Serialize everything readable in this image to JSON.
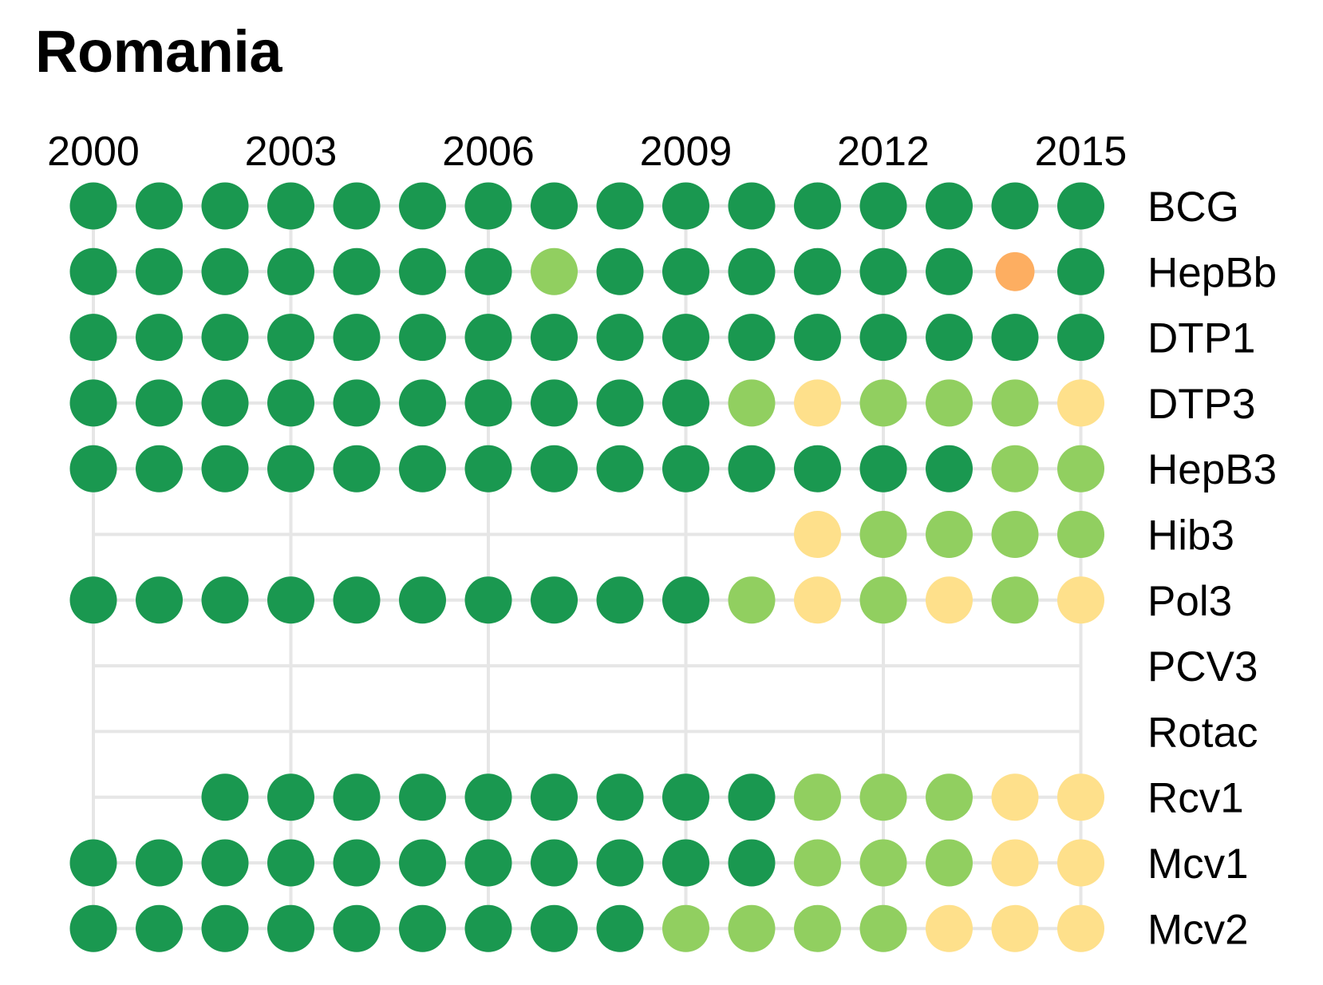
{
  "chart_data": {
    "type": "dot-matrix",
    "title": "Romania",
    "x": [
      2000,
      2001,
      2002,
      2003,
      2004,
      2005,
      2006,
      2007,
      2008,
      2009,
      2010,
      2011,
      2012,
      2013,
      2014,
      2015
    ],
    "x_tick_labels": [
      "2000",
      "2003",
      "2006",
      "2009",
      "2012",
      "2015"
    ],
    "grid": true,
    "colors": {
      "dark_green": "#1a9850",
      "light_green": "#91cf60",
      "light_yellow": "#fee08b",
      "orange": "#fdae61",
      "grid": "#e6e6e6"
    },
    "series": [
      {
        "name": "BCG",
        "values": [
          "dark_green",
          "dark_green",
          "dark_green",
          "dark_green",
          "dark_green",
          "dark_green",
          "dark_green",
          "dark_green",
          "dark_green",
          "dark_green",
          "dark_green",
          "dark_green",
          "dark_green",
          "dark_green",
          "dark_green",
          "dark_green"
        ]
      },
      {
        "name": "HepBb",
        "values": [
          "dark_green",
          "dark_green",
          "dark_green",
          "dark_green",
          "dark_green",
          "dark_green",
          "dark_green",
          "light_green",
          "dark_green",
          "dark_green",
          "dark_green",
          "dark_green",
          "dark_green",
          "dark_green",
          "orange",
          "dark_green"
        ]
      },
      {
        "name": "DTP1",
        "values": [
          "dark_green",
          "dark_green",
          "dark_green",
          "dark_green",
          "dark_green",
          "dark_green",
          "dark_green",
          "dark_green",
          "dark_green",
          "dark_green",
          "dark_green",
          "dark_green",
          "dark_green",
          "dark_green",
          "dark_green",
          "dark_green"
        ]
      },
      {
        "name": "DTP3",
        "values": [
          "dark_green",
          "dark_green",
          "dark_green",
          "dark_green",
          "dark_green",
          "dark_green",
          "dark_green",
          "dark_green",
          "dark_green",
          "dark_green",
          "light_green",
          "light_yellow",
          "light_green",
          "light_green",
          "light_green",
          "light_yellow"
        ]
      },
      {
        "name": "HepB3",
        "values": [
          "dark_green",
          "dark_green",
          "dark_green",
          "dark_green",
          "dark_green",
          "dark_green",
          "dark_green",
          "dark_green",
          "dark_green",
          "dark_green",
          "dark_green",
          "dark_green",
          "dark_green",
          "dark_green",
          "light_green",
          "light_green"
        ]
      },
      {
        "name": "Hib3",
        "values": [
          null,
          null,
          null,
          null,
          null,
          null,
          null,
          null,
          null,
          null,
          null,
          "light_yellow",
          "light_green",
          "light_green",
          "light_green",
          "light_green"
        ]
      },
      {
        "name": "Pol3",
        "values": [
          "dark_green",
          "dark_green",
          "dark_green",
          "dark_green",
          "dark_green",
          "dark_green",
          "dark_green",
          "dark_green",
          "dark_green",
          "dark_green",
          "light_green",
          "light_yellow",
          "light_green",
          "light_yellow",
          "light_green",
          "light_yellow"
        ]
      },
      {
        "name": "PCV3",
        "values": [
          null,
          null,
          null,
          null,
          null,
          null,
          null,
          null,
          null,
          null,
          null,
          null,
          null,
          null,
          null,
          null
        ]
      },
      {
        "name": "Rotac",
        "values": [
          null,
          null,
          null,
          null,
          null,
          null,
          null,
          null,
          null,
          null,
          null,
          null,
          null,
          null,
          null,
          null
        ]
      },
      {
        "name": "Rcv1",
        "values": [
          null,
          null,
          "dark_green",
          "dark_green",
          "dark_green",
          "dark_green",
          "dark_green",
          "dark_green",
          "dark_green",
          "dark_green",
          "dark_green",
          "light_green",
          "light_green",
          "light_green",
          "light_yellow",
          "light_yellow"
        ]
      },
      {
        "name": "Mcv1",
        "values": [
          "dark_green",
          "dark_green",
          "dark_green",
          "dark_green",
          "dark_green",
          "dark_green",
          "dark_green",
          "dark_green",
          "dark_green",
          "dark_green",
          "dark_green",
          "light_green",
          "light_green",
          "light_green",
          "light_yellow",
          "light_yellow"
        ]
      },
      {
        "name": "Mcv2",
        "values": [
          "dark_green",
          "dark_green",
          "dark_green",
          "dark_green",
          "dark_green",
          "dark_green",
          "dark_green",
          "dark_green",
          "dark_green",
          "light_green",
          "light_green",
          "light_green",
          "light_green",
          "light_yellow",
          "light_yellow",
          "light_yellow"
        ]
      }
    ]
  }
}
